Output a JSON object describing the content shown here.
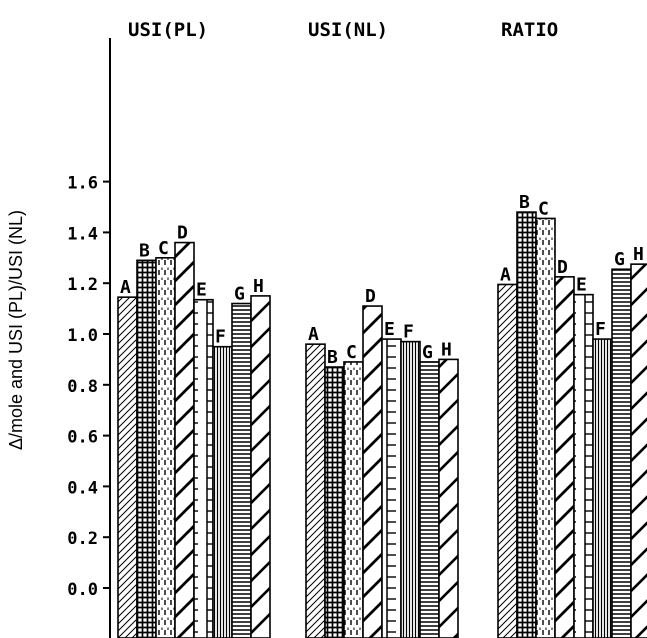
{
  "chart_data": {
    "type": "bar",
    "ylabel": "Δ/mole and USI (PL)/USI (NL)",
    "ylim": [
      0.0,
      1.6
    ],
    "yticks": [
      "0.0",
      "0.2",
      "0.4",
      "0.6",
      "0.8",
      "1.0",
      "1.2",
      "1.4",
      "1.6"
    ],
    "grid": false,
    "legend": "none",
    "groups": [
      {
        "title": "USI(PL)",
        "bars": [
          {
            "label": "A",
            "value": 1.145,
            "pattern": "diag-fine"
          },
          {
            "label": "B",
            "value": 1.29,
            "pattern": "crosshatch"
          },
          {
            "label": "C",
            "value": 1.3,
            "pattern": "dashed-vertical"
          },
          {
            "label": "D",
            "value": 1.36,
            "pattern": "diag-wide"
          },
          {
            "label": "E",
            "value": 1.135,
            "pattern": "ladder"
          },
          {
            "label": "F",
            "value": 0.95,
            "pattern": "vertical"
          },
          {
            "label": "G",
            "value": 1.12,
            "pattern": "horizontal"
          },
          {
            "label": "H",
            "value": 1.15,
            "pattern": "diag-coarse"
          }
        ]
      },
      {
        "title": "USI(NL)",
        "bars": [
          {
            "label": "A",
            "value": 0.96,
            "pattern": "diag-fine"
          },
          {
            "label": "B",
            "value": 0.87,
            "pattern": "crosshatch"
          },
          {
            "label": "C",
            "value": 0.89,
            "pattern": "dashed-vertical"
          },
          {
            "label": "D",
            "value": 1.11,
            "pattern": "diag-wide"
          },
          {
            "label": "E",
            "value": 0.98,
            "pattern": "ladder"
          },
          {
            "label": "F",
            "value": 0.97,
            "pattern": "vertical"
          },
          {
            "label": "G",
            "value": 0.89,
            "pattern": "horizontal"
          },
          {
            "label": "H",
            "value": 0.9,
            "pattern": "diag-coarse"
          }
        ]
      },
      {
        "title": "RATIO",
        "bars": [
          {
            "label": "A",
            "value": 1.195,
            "pattern": "diag-fine"
          },
          {
            "label": "B",
            "value": 1.48,
            "pattern": "crosshatch"
          },
          {
            "label": "C",
            "value": 1.455,
            "pattern": "dashed-vertical"
          },
          {
            "label": "D",
            "value": 1.225,
            "pattern": "diag-wide"
          },
          {
            "label": "E",
            "value": 1.155,
            "pattern": "ladder"
          },
          {
            "label": "F",
            "value": 0.98,
            "pattern": "vertical"
          },
          {
            "label": "G",
            "value": 1.255,
            "pattern": "horizontal"
          },
          {
            "label": "H",
            "value": 1.275,
            "pattern": "diag-coarse"
          }
        ]
      }
    ]
  }
}
